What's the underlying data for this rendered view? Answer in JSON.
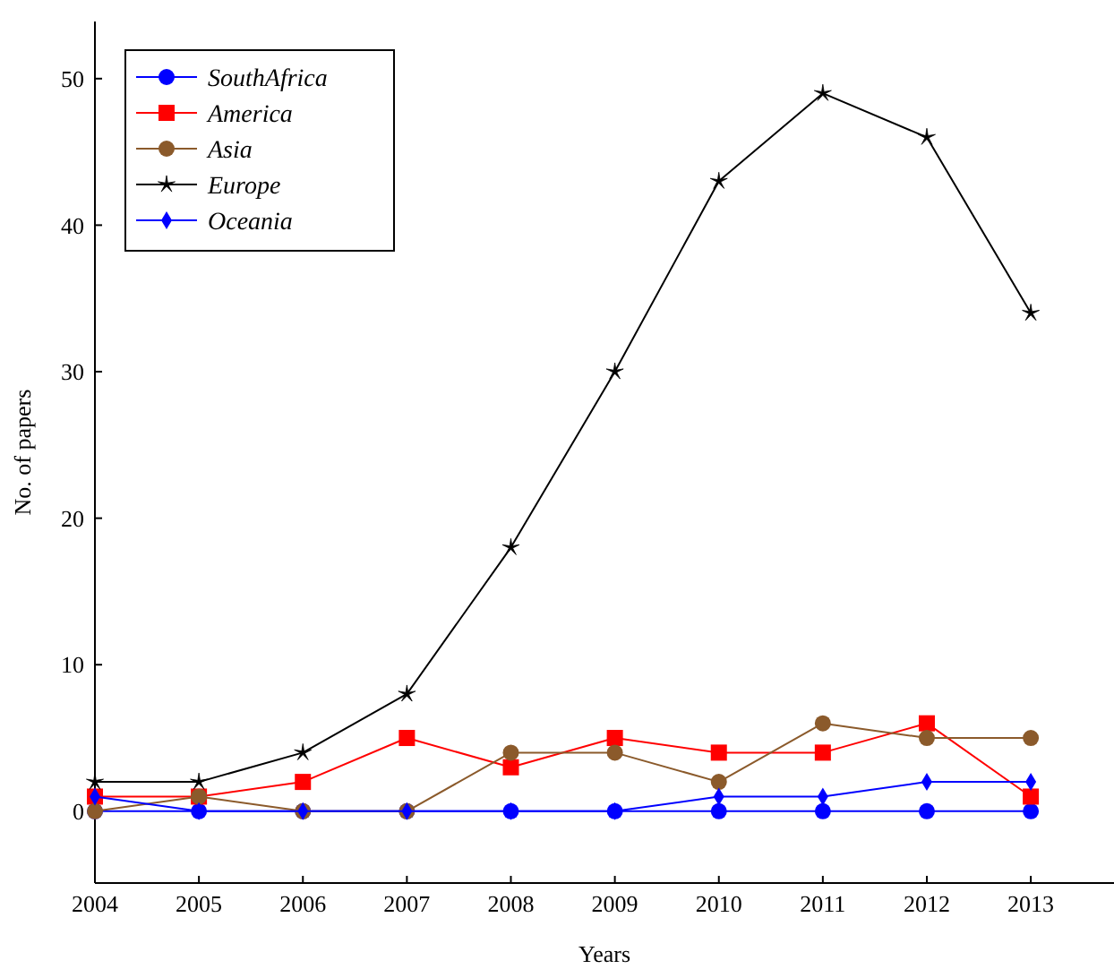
{
  "chart_data": {
    "type": "line",
    "xlabel": "Years",
    "ylabel": "No. of papers",
    "x": [
      2004,
      2005,
      2006,
      2007,
      2008,
      2009,
      2010,
      2011,
      2012,
      2013
    ],
    "series": [
      {
        "name": "SouthAfrica",
        "color": "#0000ff",
        "marker": "circle",
        "values": [
          0,
          0,
          0,
          0,
          0,
          0,
          0,
          0,
          0,
          0
        ]
      },
      {
        "name": "America",
        "color": "#ff0000",
        "marker": "square",
        "values": [
          1,
          1,
          2,
          5,
          3,
          5,
          4,
          4,
          6,
          1
        ]
      },
      {
        "name": "Asia",
        "color": "#8b5a2b",
        "marker": "circle",
        "values": [
          0,
          1,
          0,
          0,
          4,
          4,
          2,
          6,
          5,
          5
        ]
      },
      {
        "name": "Europe",
        "color": "#000000",
        "marker": "star",
        "values": [
          2,
          2,
          4,
          8,
          18,
          30,
          43,
          49,
          46,
          34
        ]
      },
      {
        "name": "Oceania",
        "color": "#0000ff",
        "marker": "diamond",
        "values": [
          1,
          0,
          0,
          0,
          0,
          0,
          1,
          1,
          2,
          2
        ]
      }
    ],
    "xlim": [
      2004,
      2013.8
    ],
    "xticks": [
      2004,
      2005,
      2006,
      2007,
      2008,
      2009,
      2010,
      2011,
      2012,
      2013
    ],
    "ylim": [
      -4.9,
      53.9
    ],
    "yticks": [
      0,
      10,
      20,
      30,
      40,
      50
    ],
    "legend": "top left",
    "grid": false,
    "line_style": "solid"
  }
}
